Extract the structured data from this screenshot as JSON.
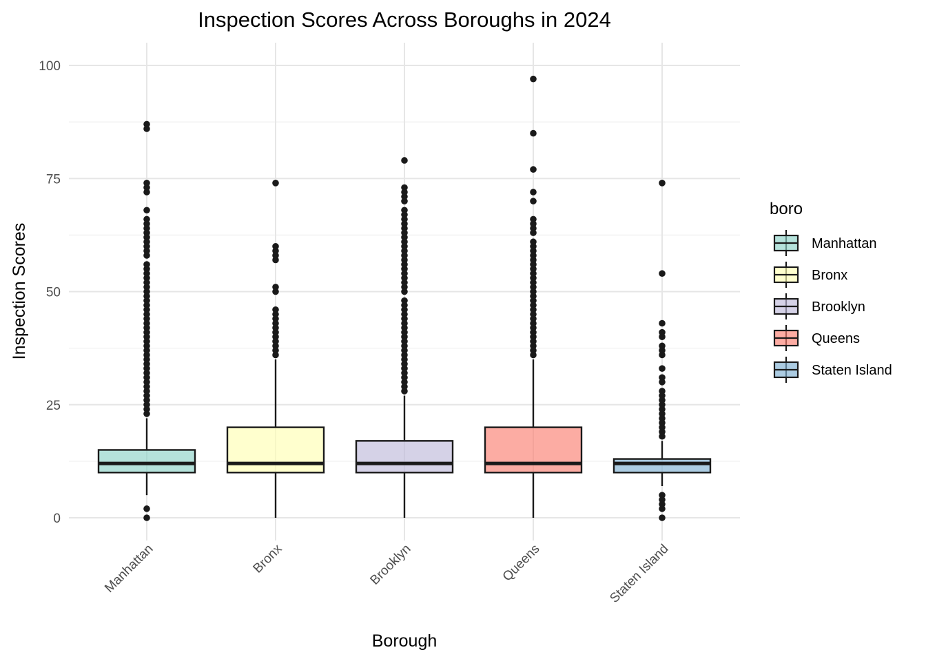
{
  "chart_data": {
    "type": "box",
    "title": "Inspection Scores Across Boroughs in 2024",
    "xlabel": "Borough",
    "ylabel": "Inspection Scores",
    "ylim": [
      -5,
      104
    ],
    "yticks": [
      0,
      25,
      50,
      75,
      100
    ],
    "grid": true,
    "legend": {
      "title": "boro",
      "position": "right"
    },
    "categories": [
      "Manhattan",
      "Bronx",
      "Brooklyn",
      "Queens",
      "Staten Island"
    ],
    "series": [
      {
        "name": "Manhattan",
        "color": "#8dd3c7",
        "q1": 10,
        "median": 12,
        "q3": 15,
        "whisker_low": 5,
        "whisker_high": 22,
        "outliers": [
          0,
          2,
          23,
          24,
          25,
          26,
          27,
          28,
          29,
          30,
          31,
          32,
          33,
          34,
          35,
          36,
          37,
          38,
          39,
          40,
          41,
          42,
          43,
          44,
          45,
          46,
          47,
          48,
          49,
          50,
          51,
          52,
          53,
          54,
          55,
          56,
          58,
          59,
          60,
          61,
          62,
          63,
          64,
          65,
          66,
          68,
          72,
          73,
          74,
          86,
          87
        ]
      },
      {
        "name": "Bronx",
        "color": "#ffffb3",
        "q1": 10,
        "median": 12,
        "q3": 20,
        "whisker_low": 0,
        "whisker_high": 35,
        "outliers": [
          36,
          37,
          38,
          39,
          40,
          41,
          42,
          43,
          44,
          45,
          46,
          50,
          51,
          57,
          58,
          59,
          60,
          74
        ]
      },
      {
        "name": "Brooklyn",
        "color": "#bebada",
        "q1": 10,
        "median": 12,
        "q3": 17,
        "whisker_low": 0,
        "whisker_high": 27,
        "outliers": [
          28,
          29,
          30,
          31,
          32,
          33,
          34,
          35,
          36,
          37,
          38,
          39,
          40,
          41,
          42,
          43,
          44,
          45,
          46,
          47,
          48,
          50,
          51,
          52,
          53,
          54,
          55,
          56,
          57,
          58,
          59,
          60,
          61,
          62,
          63,
          64,
          65,
          66,
          67,
          68,
          70,
          71,
          72,
          73,
          79
        ]
      },
      {
        "name": "Queens",
        "color": "#fb8072",
        "q1": 10,
        "median": 12,
        "q3": 20,
        "whisker_low": 0,
        "whisker_high": 35,
        "outliers": [
          36,
          37,
          38,
          39,
          40,
          41,
          42,
          43,
          44,
          45,
          46,
          47,
          48,
          49,
          50,
          51,
          52,
          53,
          54,
          55,
          56,
          57,
          58,
          59,
          60,
          61,
          63,
          64,
          65,
          66,
          70,
          72,
          77,
          85,
          97
        ]
      },
      {
        "name": "Staten Island",
        "color": "#80b1d3",
        "q1": 10,
        "median": 12,
        "q3": 13,
        "whisker_low": 7,
        "whisker_high": 17,
        "outliers": [
          0,
          2,
          3,
          4,
          5,
          18,
          19,
          20,
          21,
          22,
          23,
          24,
          25,
          26,
          27,
          28,
          30,
          31,
          33,
          36,
          37,
          38,
          40,
          41,
          43,
          54,
          74
        ]
      }
    ]
  }
}
